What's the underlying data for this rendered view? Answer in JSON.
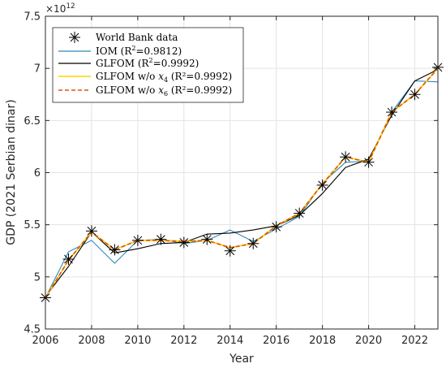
{
  "chart_data": {
    "type": "line",
    "xlabel": "Year",
    "ylabel": "GDP (2021 Serbian dinar)",
    "y_exponent_label": "×10",
    "y_exponent_power": "12",
    "xlim": [
      2006,
      2023
    ],
    "ylim": [
      4.5,
      7.5
    ],
    "x_ticks": [
      2006,
      2008,
      2010,
      2012,
      2014,
      2016,
      2018,
      2020,
      2022
    ],
    "y_ticks": [
      4.5,
      5,
      5.5,
      6,
      6.5,
      7,
      7.5
    ],
    "y_tick_labels": [
      "4.5",
      "5",
      "5.5",
      "6",
      "6.5",
      "7",
      "7.5"
    ],
    "grid": true,
    "legend_position": "top-left",
    "x": [
      2006,
      2007,
      2008,
      2009,
      2010,
      2011,
      2012,
      2013,
      2014,
      2015,
      2016,
      2017,
      2018,
      2019,
      2020,
      2021,
      2022,
      2023
    ],
    "series": [
      {
        "name": "World Bank data",
        "style": "markers",
        "color": "#000000",
        "values": [
          4.8,
          5.17,
          5.44,
          5.26,
          5.35,
          5.36,
          5.33,
          5.36,
          5.25,
          5.32,
          5.48,
          5.61,
          5.88,
          6.15,
          6.1,
          6.58,
          6.75,
          7.01
        ]
      },
      {
        "name": "IOM (R",
        "name_sup": "2",
        "name_rest": "=0.9812)",
        "style": "line",
        "color": "#2e8bc0",
        "values": [
          4.8,
          5.24,
          5.35,
          5.13,
          5.35,
          5.36,
          5.32,
          5.35,
          5.45,
          5.34,
          5.46,
          5.58,
          5.9,
          6.1,
          6.11,
          6.58,
          6.88,
          6.87
        ]
      },
      {
        "name": "GLFOM (R",
        "name_sup": "2",
        "name_rest": "=0.9992)",
        "style": "line",
        "color": "#000000",
        "values": [
          4.81,
          5.1,
          5.43,
          5.23,
          5.27,
          5.32,
          5.33,
          5.41,
          5.42,
          5.45,
          5.49,
          5.59,
          5.8,
          6.05,
          6.13,
          6.55,
          6.88,
          6.99
        ]
      },
      {
        "name": "GLFOM w/o ",
        "name_var": "x",
        "name_sub": "4",
        "name_rest": " (R²=0.9992)",
        "style": "line",
        "color": "#ffd400",
        "values": [
          4.8,
          5.16,
          5.43,
          5.26,
          5.35,
          5.35,
          5.34,
          5.35,
          5.28,
          5.32,
          5.49,
          5.61,
          5.89,
          6.15,
          6.1,
          6.58,
          6.75,
          7.0
        ]
      },
      {
        "name": "GLFOM w/o ",
        "name_var": "x",
        "name_sub": "6",
        "name_rest": " (R²=0.9992)",
        "style": "dashed",
        "color": "#d95319",
        "values": [
          4.8,
          5.16,
          5.43,
          5.26,
          5.35,
          5.35,
          5.34,
          5.35,
          5.28,
          5.32,
          5.49,
          5.61,
          5.89,
          6.15,
          6.1,
          6.58,
          6.75,
          7.0
        ]
      }
    ]
  }
}
